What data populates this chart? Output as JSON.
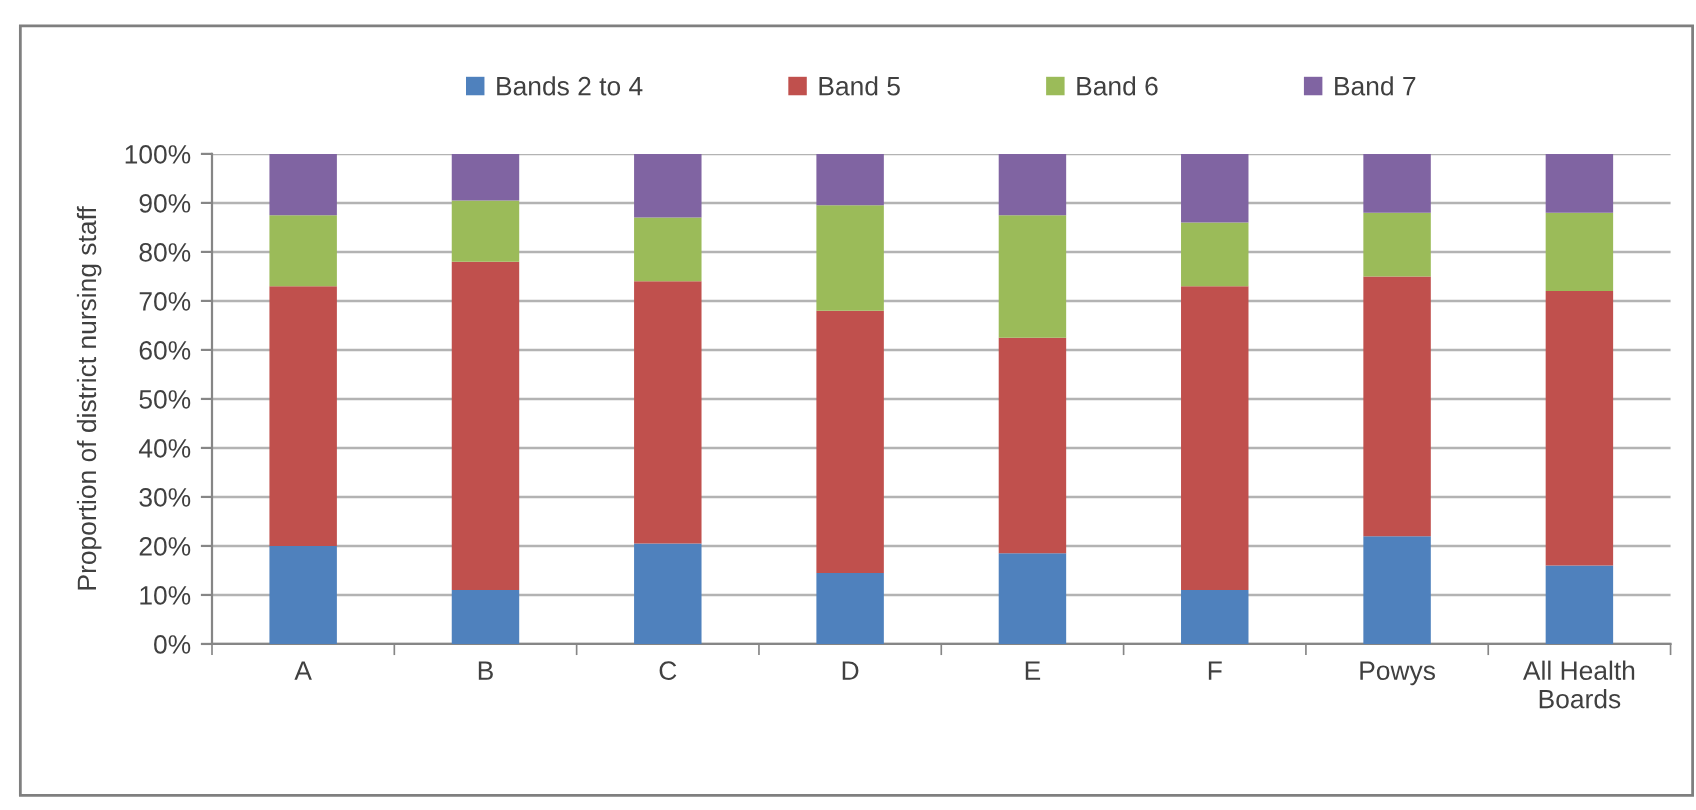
{
  "chart_data": {
    "type": "bar",
    "stacked": true,
    "ylabel": "Proportion of district nursing staff",
    "categories": [
      "A",
      "B",
      "C",
      "D",
      "E",
      "F",
      "Powys",
      "All Health Boards"
    ],
    "series": [
      {
        "name": "Bands 2 to 4",
        "color": "#4f81bd",
        "values": [
          20,
          11,
          20.5,
          14.5,
          18.5,
          11,
          22,
          16
        ]
      },
      {
        "name": "Band 5",
        "color": "#c0504d",
        "values": [
          53,
          67,
          53.5,
          53.5,
          44,
          62,
          53,
          56
        ]
      },
      {
        "name": "Band 6",
        "color": "#9bbb59",
        "values": [
          14.5,
          12.5,
          13,
          21.5,
          25,
          13,
          13,
          16
        ]
      },
      {
        "name": "Band 7",
        "color": "#8064a2",
        "values": [
          12.5,
          9.5,
          13,
          10.5,
          12.5,
          14,
          12,
          12
        ]
      }
    ],
    "ylim": [
      0,
      100
    ],
    "yticks": [
      {
        "value": 0,
        "label": "0%"
      },
      {
        "value": 10,
        "label": "10%"
      },
      {
        "value": 20,
        "label": "20%"
      },
      {
        "value": 30,
        "label": "30%"
      },
      {
        "value": 40,
        "label": "40%"
      },
      {
        "value": 50,
        "label": "50%"
      },
      {
        "value": 60,
        "label": "60%"
      },
      {
        "value": 70,
        "label": "70%"
      },
      {
        "value": 80,
        "label": "80%"
      },
      {
        "value": 90,
        "label": "90%"
      },
      {
        "value": 100,
        "label": "100%"
      }
    ],
    "grid": "y",
    "legend": "top"
  }
}
